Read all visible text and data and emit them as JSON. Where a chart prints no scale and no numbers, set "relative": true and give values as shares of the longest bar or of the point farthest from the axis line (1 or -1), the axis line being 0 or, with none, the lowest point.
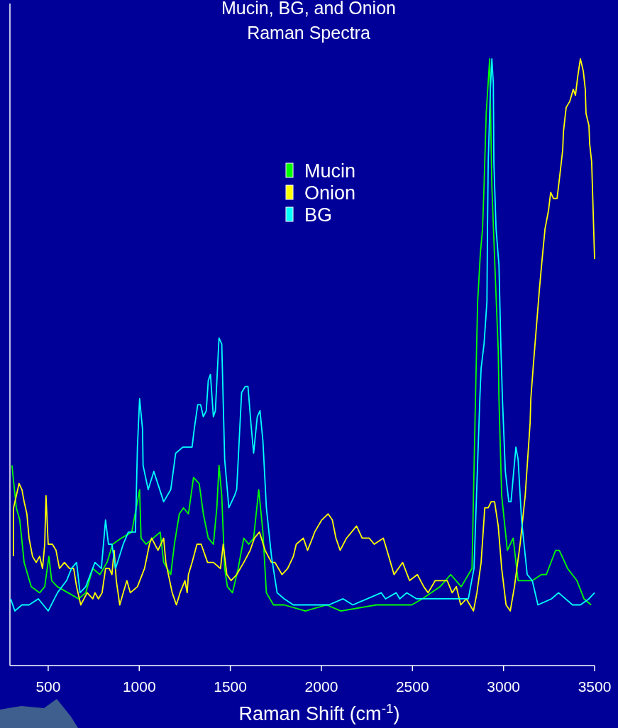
{
  "chart_data": {
    "type": "line",
    "title": "Mucin, BG, and Onion\nRaman Spectra",
    "xlabel": "Raman Shift (cm$^{-1}$)",
    "relative": true,
    "legend": "top",
    "grid": false,
    "marker": "none",
    "line_style": "solid",
    "xlim": [
      290,
      3500
    ],
    "xticks": [
      500,
      1000,
      1500,
      2000,
      2500,
      3000,
      3500
    ],
    "series": [
      {
        "name": "Mucin",
        "color": "#00ff00",
        "x": [
          301,
          325,
          344,
          368,
          407,
          453,
          481,
          504,
          519,
          551,
          609,
          667,
          706,
          745,
          784,
          823,
          854,
          901,
          959,
          1002,
          1010,
          1037,
          1076,
          1115,
          1134,
          1173,
          1193,
          1220,
          1243,
          1270,
          1298,
          1329,
          1352,
          1379,
          1407,
          1426,
          1438,
          1453,
          1469,
          1484,
          1512,
          1543,
          1574,
          1601,
          1628,
          1656,
          1679,
          1698,
          1737,
          1796,
          1912,
          2029,
          2107,
          2302,
          2379,
          2438,
          2496,
          2554,
          2652,
          2710,
          2768,
          2807,
          2827,
          2846,
          2858,
          2873,
          2885,
          2893,
          2905,
          2924,
          2936,
          2955,
          2971,
          2975,
          2990,
          3021,
          3053,
          3080,
          3158,
          3208,
          3235,
          3286,
          3306,
          3352,
          3403,
          3442,
          3481
        ],
        "values": [
          0.33,
          0.26,
          0.24,
          0.17,
          0.13,
          0.12,
          0.13,
          0.18,
          0.14,
          0.13,
          0.12,
          0.11,
          0.12,
          0.16,
          0.15,
          0.17,
          0.2,
          0.21,
          0.22,
          0.29,
          0.21,
          0.2,
          0.21,
          0.22,
          0.17,
          0.15,
          0.2,
          0.25,
          0.26,
          0.25,
          0.31,
          0.3,
          0.25,
          0.21,
          0.2,
          0.26,
          0.33,
          0.28,
          0.16,
          0.13,
          0.12,
          0.16,
          0.21,
          0.2,
          0.21,
          0.29,
          0.22,
          0.12,
          0.1,
          0.1,
          0.09,
          0.1,
          0.09,
          0.1,
          0.1,
          0.1,
          0.1,
          0.11,
          0.13,
          0.15,
          0.13,
          0.15,
          0.16,
          0.44,
          0.6,
          0.68,
          0.72,
          0.79,
          0.91,
          1.0,
          0.79,
          0.64,
          0.52,
          0.44,
          0.28,
          0.19,
          0.21,
          0.14,
          0.14,
          0.15,
          0.15,
          0.19,
          0.19,
          0.16,
          0.14,
          0.11,
          0.1
        ]
      },
      {
        "name": "Onion",
        "color": "#ffff00",
        "x": [
          309,
          310,
          325,
          340,
          356,
          368,
          383,
          395,
          414,
          434,
          453,
          469,
          481,
          488,
          500,
          523,
          543,
          562,
          589,
          617,
          640,
          656,
          679,
          714,
          745,
          757,
          776,
          796,
          815,
          835,
          850,
          862,
          874,
          893,
          912,
          932,
          951,
          990,
          1029,
          1056,
          1068,
          1103,
          1134,
          1146,
          1181,
          1204,
          1224,
          1251,
          1263,
          1270,
          1290,
          1317,
          1340,
          1375,
          1407,
          1446,
          1461,
          1481,
          1504,
          1535,
          1574,
          1609,
          1632,
          1660,
          1691,
          1726,
          1745,
          1784,
          1815,
          1846,
          1862,
          1901,
          1924,
          1951,
          1963,
          2002,
          2037,
          2060,
          2080,
          2103,
          2138,
          2193,
          2224,
          2263,
          2290,
          2340,
          2360,
          2399,
          2446,
          2484,
          2527,
          2562,
          2586,
          2625,
          2691,
          2718,
          2741,
          2765,
          2796,
          2835,
          2854,
          2877,
          2897,
          2916,
          2932,
          2951,
          2971,
          2990,
          3014,
          3037,
          3060,
          3091,
          3119,
          3146,
          3150,
          3165,
          3197,
          3212,
          3228,
          3247,
          3259,
          3274,
          3294,
          3306,
          3325,
          3329,
          3344,
          3364,
          3383,
          3395,
          3407,
          3422,
          3438,
          3449,
          3453,
          3469,
          3473,
          3484,
          3492,
          3500
        ],
        "values": [
          0.18,
          0.26,
          0.28,
          0.3,
          0.29,
          0.27,
          0.25,
          0.21,
          0.18,
          0.17,
          0.18,
          0.16,
          0.2,
          0.28,
          0.2,
          0.2,
          0.19,
          0.16,
          0.17,
          0.16,
          0.16,
          0.13,
          0.1,
          0.12,
          0.11,
          0.12,
          0.11,
          0.12,
          0.16,
          0.16,
          0.15,
          0.19,
          0.14,
          0.1,
          0.12,
          0.14,
          0.12,
          0.13,
          0.16,
          0.2,
          0.21,
          0.19,
          0.21,
          0.17,
          0.12,
          0.1,
          0.12,
          0.14,
          0.12,
          0.15,
          0.17,
          0.2,
          0.2,
          0.17,
          0.17,
          0.16,
          0.2,
          0.15,
          0.14,
          0.15,
          0.17,
          0.19,
          0.21,
          0.22,
          0.19,
          0.17,
          0.17,
          0.15,
          0.16,
          0.18,
          0.2,
          0.21,
          0.19,
          0.21,
          0.22,
          0.24,
          0.25,
          0.24,
          0.21,
          0.19,
          0.21,
          0.23,
          0.21,
          0.21,
          0.2,
          0.21,
          0.19,
          0.15,
          0.17,
          0.14,
          0.15,
          0.13,
          0.12,
          0.14,
          0.14,
          0.12,
          0.13,
          0.1,
          0.11,
          0.09,
          0.12,
          0.17,
          0.26,
          0.26,
          0.27,
          0.27,
          0.23,
          0.16,
          0.1,
          0.09,
          0.13,
          0.2,
          0.28,
          0.4,
          0.44,
          0.5,
          0.62,
          0.67,
          0.72,
          0.75,
          0.78,
          0.77,
          0.77,
          0.8,
          0.85,
          0.88,
          0.92,
          0.93,
          0.95,
          0.94,
          0.97,
          1.0,
          0.98,
          0.95,
          0.91,
          0.89,
          0.86,
          0.83,
          0.75,
          0.67
        ]
      },
      {
        "name": "BG",
        "color": "#00ffff",
        "x": [
          294,
          317,
          356,
          395,
          446,
          500,
          551,
          601,
          628,
          656,
          675,
          706,
          757,
          792,
          815,
          831,
          850,
          870,
          912,
          940,
          979,
          990,
          1002,
          1018,
          1021,
          1049,
          1080,
          1134,
          1173,
          1200,
          1239,
          1263,
          1290,
          1302,
          1321,
          1337,
          1352,
          1368,
          1379,
          1391,
          1407,
          1418,
          1438,
          1453,
          1469,
          1492,
          1523,
          1535,
          1562,
          1582,
          1597,
          1613,
          1628,
          1648,
          1663,
          1679,
          1698,
          1726,
          1757,
          1796,
          1846,
          1912,
          2041,
          2119,
          2173,
          2329,
          2352,
          2411,
          2430,
          2469,
          2523,
          2586,
          2652,
          2691,
          2741,
          2807,
          2819,
          2838,
          2870,
          2877,
          2893,
          2909,
          2912,
          2916,
          2928,
          2936,
          2944,
          2947,
          2959,
          2975,
          2986,
          2994,
          3010,
          3029,
          3041,
          3056,
          3068,
          3080,
          3099,
          3130,
          3158,
          3189,
          3263,
          3302,
          3379,
          3422,
          3469,
          3500
        ],
        "values": [
          0.11,
          0.09,
          0.1,
          0.1,
          0.11,
          0.09,
          0.12,
          0.14,
          0.16,
          0.17,
          0.12,
          0.13,
          0.17,
          0.16,
          0.24,
          0.2,
          0.2,
          0.16,
          0.2,
          0.22,
          0.22,
          0.36,
          0.44,
          0.39,
          0.33,
          0.29,
          0.32,
          0.27,
          0.29,
          0.35,
          0.36,
          0.36,
          0.36,
          0.39,
          0.43,
          0.43,
          0.41,
          0.42,
          0.47,
          0.48,
          0.41,
          0.42,
          0.54,
          0.53,
          0.34,
          0.26,
          0.28,
          0.29,
          0.45,
          0.46,
          0.46,
          0.4,
          0.35,
          0.41,
          0.42,
          0.37,
          0.26,
          0.18,
          0.12,
          0.11,
          0.1,
          0.1,
          0.1,
          0.11,
          0.1,
          0.12,
          0.11,
          0.12,
          0.11,
          0.12,
          0.11,
          0.11,
          0.11,
          0.11,
          0.11,
          0.11,
          0.13,
          0.16,
          0.44,
          0.49,
          0.53,
          0.6,
          0.72,
          0.83,
          0.95,
          1.0,
          0.96,
          0.83,
          0.72,
          0.66,
          0.52,
          0.44,
          0.32,
          0.27,
          0.27,
          0.32,
          0.36,
          0.34,
          0.24,
          0.15,
          0.14,
          0.1,
          0.11,
          0.12,
          0.1,
          0.1,
          0.11,
          0.12
        ]
      }
    ]
  }
}
